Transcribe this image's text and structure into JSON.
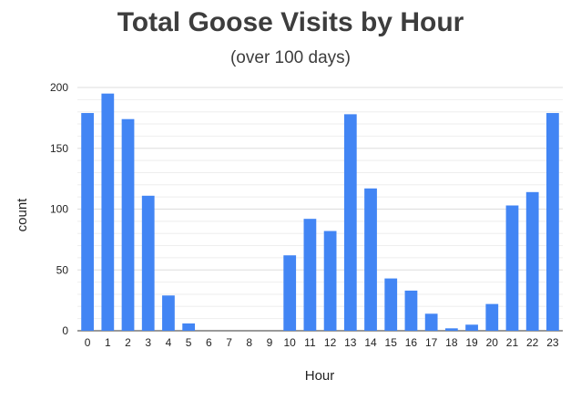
{
  "chart_data": {
    "type": "bar",
    "title": "Total Goose Visits by Hour",
    "subtitle": "(over 100 days)",
    "xlabel": "Hour",
    "ylabel": "count",
    "categories": [
      "0",
      "1",
      "2",
      "3",
      "4",
      "5",
      "6",
      "7",
      "8",
      "9",
      "10",
      "11",
      "12",
      "13",
      "14",
      "15",
      "16",
      "17",
      "18",
      "19",
      "20",
      "21",
      "22",
      "23"
    ],
    "values": [
      179,
      195,
      174,
      111,
      29,
      6,
      0,
      0,
      0,
      0,
      62,
      92,
      82,
      178,
      117,
      43,
      33,
      14,
      2,
      5,
      22,
      103,
      114,
      179
    ],
    "ylim": [
      0,
      200
    ],
    "yticks": [
      0,
      50,
      100,
      150,
      200
    ],
    "minor_gridlines": true,
    "legend": "none",
    "bar_color": "#4285f4",
    "grid_color": "#dddddd",
    "minor_grid_color": "#eeeeee",
    "axis_color": "#333333"
  }
}
